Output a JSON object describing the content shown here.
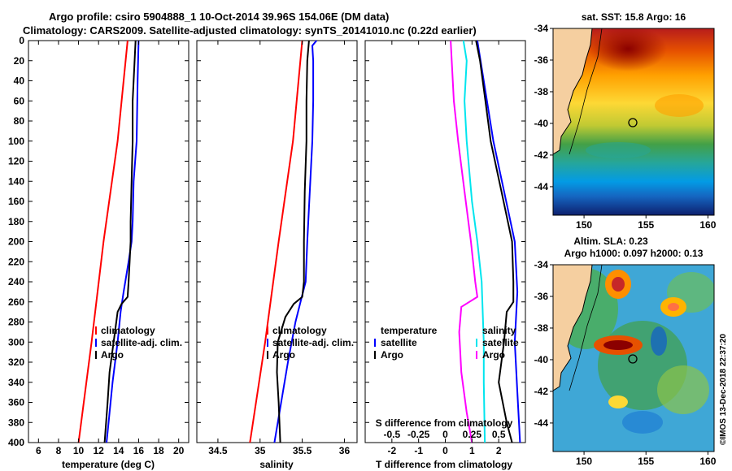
{
  "title": {
    "line1": "Argo profile: csiro 5904888_1 10-Oct-2014 39.96S 154.06E (DM data)",
    "line2": "Climatology: CARS2009. Satellite-adjusted climatology: synTS_20141010.nc (0.22d earlier)"
  },
  "colors": {
    "climatology": "#ff0000",
    "satellite": "#0000ff",
    "argo": "#000000",
    "salinity_diff": "#ff00ff",
    "cyan": "#00e5ee"
  },
  "chart_data": [
    {
      "type": "line",
      "id": "temperature",
      "xlabel": "temperature (deg C)",
      "xlim": [
        5,
        21
      ],
      "xticks": [
        "6",
        "8",
        "10",
        "12",
        "14",
        "16",
        "18",
        "20"
      ],
      "ylim": [
        400,
        0
      ],
      "yticks": [
        "0",
        "20",
        "40",
        "60",
        "80",
        "100",
        "120",
        "140",
        "160",
        "180",
        "200",
        "220",
        "240",
        "260",
        "280",
        "300",
        "320",
        "340",
        "360",
        "380",
        "400"
      ],
      "legend": [
        "climatology",
        "satellite-adj. clim.",
        "Argo"
      ],
      "series": [
        {
          "name": "climatology",
          "color": "red",
          "depth": [
            0,
            100,
            200,
            300,
            400
          ],
          "values": [
            14.9,
            13.9,
            12.5,
            11.3,
            10.0
          ]
        },
        {
          "name": "satellite-adj. clim.",
          "color": "blue",
          "depth": [
            0,
            40,
            100,
            140,
            180,
            200,
            220,
            250,
            270,
            300,
            340,
            380,
            400
          ],
          "values": [
            16.0,
            15.9,
            15.8,
            15.5,
            15.4,
            15.3,
            15.0,
            14.5,
            14.2,
            13.9,
            13.4,
            13.0,
            12.8
          ],
          "dash": "6 4"
        },
        {
          "name": "Argo",
          "color": "black",
          "depth": [
            0,
            20,
            60,
            100,
            140,
            180,
            200,
            220,
            240,
            255,
            262,
            270,
            300,
            330,
            360,
            400
          ],
          "values": [
            15.7,
            15.6,
            15.4,
            15.4,
            15.3,
            15.2,
            15.2,
            15.1,
            15.0,
            14.9,
            14.3,
            13.9,
            13.5,
            13.1,
            12.9,
            12.6
          ]
        }
      ]
    },
    {
      "type": "line",
      "id": "salinity",
      "xlabel": "salinity",
      "xlim": [
        34.25,
        36.15
      ],
      "xticks": [
        "34.5",
        "35",
        "35.5",
        "36"
      ],
      "ylim": [
        400,
        0
      ],
      "legend": [
        "climatology",
        "satellite-adj. clim.",
        "Argo"
      ],
      "series": [
        {
          "name": "climatology",
          "color": "red",
          "depth": [
            0,
            100,
            200,
            300,
            400
          ],
          "values": [
            35.5,
            35.39,
            35.22,
            35.06,
            34.88
          ]
        },
        {
          "name": "satellite-adj. clim.",
          "color": "blue",
          "depth": [
            0,
            5,
            20,
            60,
            100,
            150,
            200,
            240,
            260,
            280,
            320,
            360,
            400
          ],
          "values": [
            35.67,
            35.62,
            35.63,
            35.63,
            35.62,
            35.59,
            35.56,
            35.54,
            35.48,
            35.42,
            35.33,
            35.25,
            35.17
          ]
        },
        {
          "name": "Argo",
          "color": "black",
          "depth": [
            0,
            20,
            60,
            100,
            150,
            200,
            240,
            255,
            262,
            275,
            300,
            330,
            360,
            400
          ],
          "values": [
            35.58,
            35.56,
            35.55,
            35.55,
            35.53,
            35.52,
            35.52,
            35.5,
            35.4,
            35.3,
            35.21,
            35.2,
            35.22,
            35.24
          ]
        }
      ]
    },
    {
      "type": "line",
      "id": "difference",
      "xlabel": "T difference from climatology",
      "xlabel2": "S difference from climatology",
      "xlim": [
        -3,
        3
      ],
      "xticks": [
        "-2",
        "-1",
        "0",
        "1",
        "2"
      ],
      "xticks2": [
        "-0.5",
        "-0.25",
        "0",
        "0.25",
        "0.5"
      ],
      "ylim": [
        400,
        0
      ],
      "legend_left_title": "temperature",
      "legend_left": [
        "satellite",
        "Argo"
      ],
      "legend_right_title": "salinity",
      "legend_right": [
        "satellite",
        "Argo"
      ],
      "series": [
        {
          "name": "T satellite",
          "color": "blue",
          "depth": [
            0,
            100,
            200,
            250,
            300,
            350,
            400
          ],
          "values": [
            1.2,
            1.8,
            2.6,
            2.7,
            2.6,
            2.7,
            2.8
          ]
        },
        {
          "name": "T Argo",
          "color": "black",
          "depth": [
            0,
            20,
            60,
            100,
            150,
            200,
            240,
            260,
            270,
            300,
            340,
            380,
            400
          ],
          "values": [
            1.15,
            1.3,
            1.5,
            1.7,
            2.1,
            2.5,
            2.55,
            2.55,
            2.3,
            2.2,
            2.0,
            2.3,
            2.5
          ]
        },
        {
          "name": "S satellite",
          "color": "cyan",
          "depth": [
            0,
            20,
            60,
            100,
            160,
            200,
            240,
            270,
            300,
            340,
            400
          ],
          "values": [
            0.17,
            0.2,
            0.18,
            0.2,
            0.25,
            0.3,
            0.34,
            0.35,
            0.36,
            0.36,
            0.37
          ]
        },
        {
          "name": "S Argo",
          "color": "magenta",
          "depth": [
            0,
            20,
            60,
            100,
            150,
            200,
            240,
            255,
            265,
            290,
            330,
            370,
            400
          ],
          "values": [
            0.05,
            0.06,
            0.08,
            0.12,
            0.18,
            0.24,
            0.28,
            0.3,
            0.15,
            0.13,
            0.15,
            0.2,
            0.25
          ]
        }
      ]
    },
    {
      "type": "heatmap",
      "id": "sst_map",
      "title": "sat. SST: 15.8 Argo: 16",
      "xticks": [
        "150",
        "155",
        "160"
      ],
      "yticks": [
        "-34",
        "-36",
        "-38",
        "-40",
        "-42",
        "-44"
      ],
      "xlim": [
        147.5,
        160.5
      ],
      "ylim": [
        -45.8,
        -34
      ],
      "argo_position": [
        154.06,
        -39.96
      ]
    },
    {
      "type": "heatmap",
      "id": "sla_map",
      "title": "Altim. SLA: 0.23",
      "subtitle": "Argo h1000: 0.097 h2000: 0.13",
      "xticks": [
        "150",
        "155",
        "160"
      ],
      "yticks": [
        "-34",
        "-36",
        "-38",
        "-40",
        "-42",
        "-44"
      ],
      "xlim": [
        147.5,
        160.5
      ],
      "ylim": [
        -45.8,
        -34
      ],
      "argo_position": [
        154.06,
        -39.96
      ]
    }
  ],
  "credit": "©IMOS 13-Dec-2018 22:37:20"
}
